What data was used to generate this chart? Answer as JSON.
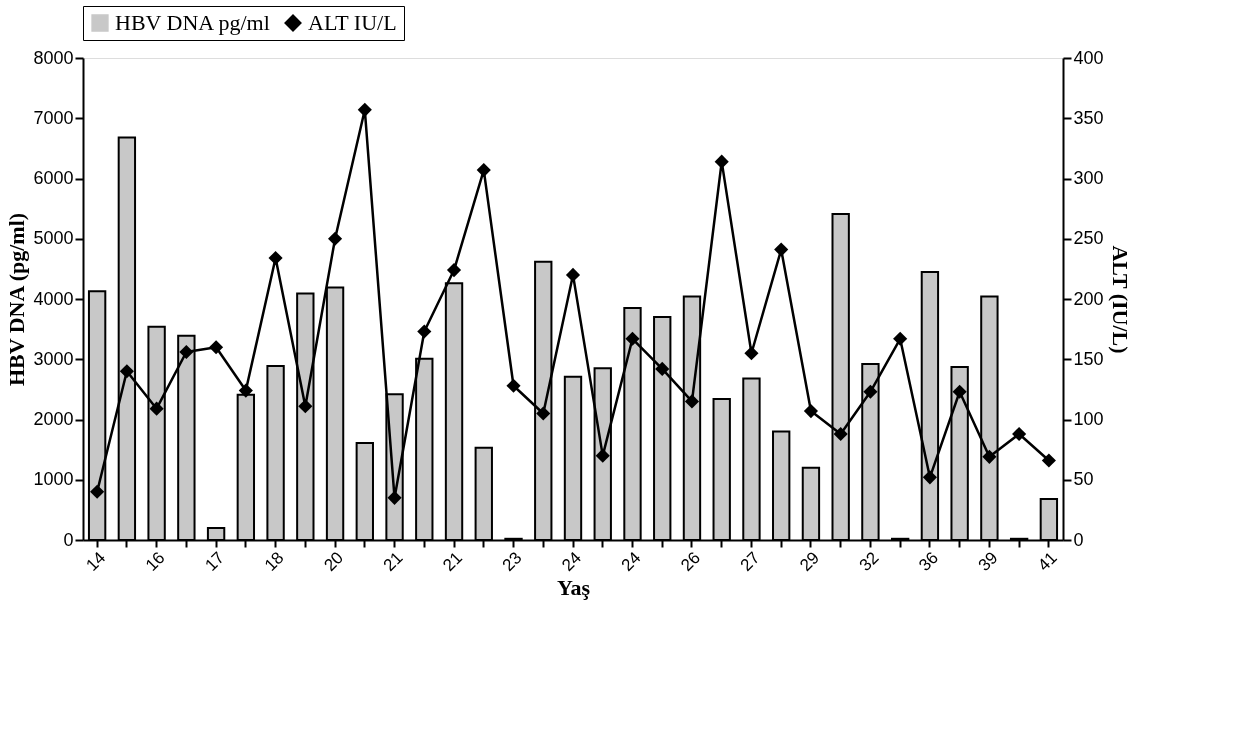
{
  "chart_data": {
    "type": "bar",
    "xlabel": "Yaş",
    "ylabel": "HBV DNA (pg/ml)",
    "y2label": "ALT (IU/L)",
    "categories": [
      "14",
      null,
      "16",
      null,
      "17",
      null,
      "18",
      null,
      "20",
      null,
      "21",
      null,
      "21",
      null,
      "23",
      null,
      "24",
      null,
      "24",
      null,
      "26",
      null,
      "27",
      null,
      "29",
      null,
      "32",
      null,
      "36",
      null,
      "39",
      null,
      "41"
    ],
    "series": [
      {
        "name": "HBV DNA pg/ml",
        "color": "#c8c8c8",
        "values": [
          4130,
          6680,
          3540,
          3390,
          200,
          2410,
          2890,
          4090,
          4190,
          1610,
          2420,
          3010,
          4260,
          1530,
          20,
          4620,
          2710,
          2850,
          3850,
          3700,
          4040,
          2340,
          2680,
          1800,
          1200,
          5410,
          2920,
          20,
          4450,
          2870,
          4040,
          20,
          680
        ]
      },
      {
        "name": "ALT IU/L",
        "type": "line",
        "axis": "y2",
        "color": "#000000",
        "marker": "diamond",
        "values": [
          40,
          140,
          109,
          156,
          160,
          124,
          234,
          111,
          250,
          357,
          35,
          173,
          224,
          307,
          128,
          105,
          220,
          70,
          167,
          142,
          115,
          314,
          155,
          241,
          107,
          88,
          123,
          167,
          52,
          123,
          69,
          88,
          66
        ]
      }
    ],
    "ylim": [
      0,
      8000
    ],
    "yticks": [
      0,
      1000,
      2000,
      3000,
      4000,
      5000,
      6000,
      7000,
      8000
    ],
    "y2lim": [
      0,
      400
    ],
    "y2ticks": [
      0,
      50,
      100,
      150,
      200,
      250,
      300,
      350,
      400
    ],
    "grid": false,
    "legend": "top"
  }
}
